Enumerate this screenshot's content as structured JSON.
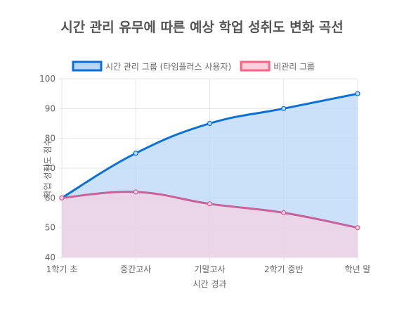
{
  "chart_data": {
    "type": "line",
    "title": "시간 관리 유무에 따른 예상 학업 성취도 변화 곡선",
    "xlabel": "시간 경과",
    "ylabel": "학업 성취도 점수",
    "categories": [
      "1학기 초",
      "중간고사",
      "기말고사",
      "2학기 중반",
      "학년 말"
    ],
    "ylim": [
      40,
      100
    ],
    "yticks": [
      40,
      50,
      60,
      70,
      80,
      90,
      100
    ],
    "grid": true,
    "legend": "top",
    "series": [
      {
        "name": "시간 관리 그룹 (타임플러스 사용자)",
        "values": [
          60,
          75,
          85,
          90,
          95
        ],
        "color": "#0a6fd9",
        "fill": "#b9d7f7"
      },
      {
        "name": "비관리 그룹",
        "values": [
          60,
          62,
          58,
          55,
          50
        ],
        "color": "#c9619a",
        "fill": "#ffcfdc",
        "legend_color": "#ff6384"
      }
    ]
  }
}
